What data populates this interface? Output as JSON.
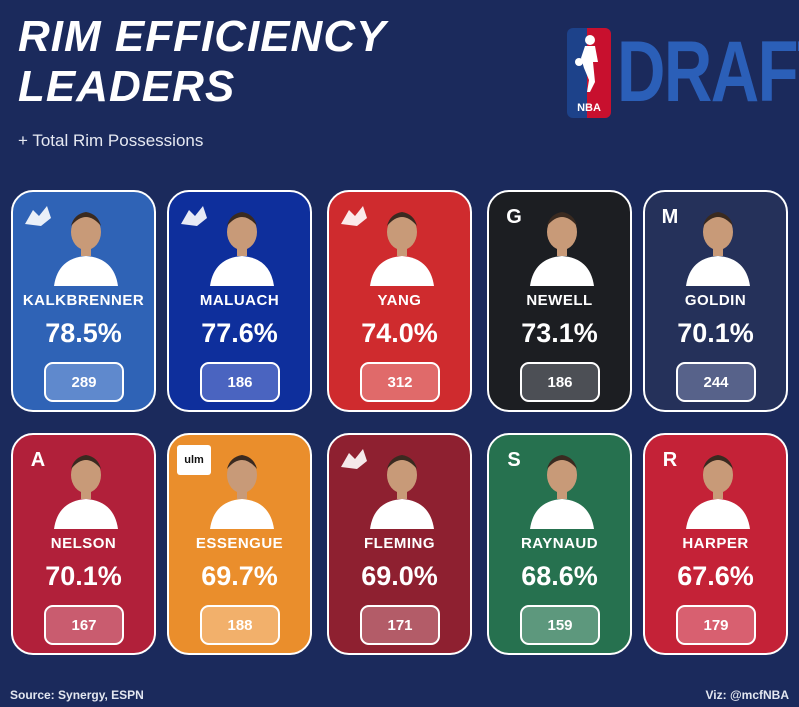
{
  "header": {
    "title_line1": "RIM EFFICIENCY",
    "title_line2": "LEADERS",
    "subtitle": "+ Total Rim Possessions",
    "logo_badge_text": "NBA",
    "logo_word": "DRAFT"
  },
  "players": [
    {
      "name": "KALKBRENNER",
      "pct": "78.5%",
      "possessions": "289",
      "card_color": "#2f63b6",
      "box_color": "#5f89cd",
      "team_logo": "bluejay-icon",
      "logo_text": ""
    },
    {
      "name": "MALUACH",
      "pct": "77.6%",
      "possessions": "186",
      "card_color": "#0e2f9c",
      "box_color": "#4a64c0",
      "team_logo": "blue-devil-icon",
      "logo_text": ""
    },
    {
      "name": "YANG",
      "pct": "74.0%",
      "possessions": "312",
      "card_color": "#cf2b2e",
      "box_color": "#e06a6a",
      "team_logo": "tianjin-crest-icon",
      "logo_text": ""
    },
    {
      "name": "NEWELL",
      "pct": "73.1%",
      "possessions": "186",
      "card_color": "#1c1e22",
      "box_color": "#4c4f55",
      "team_logo": "georgia-g-icon",
      "logo_text": "G"
    },
    {
      "name": "GOLDIN",
      "pct": "70.1%",
      "possessions": "244",
      "card_color": "#25315a",
      "box_color": "#57628a",
      "team_logo": "michigan-m-icon",
      "logo_text": "M"
    },
    {
      "name": "NELSON",
      "pct": "70.1%",
      "possessions": "167",
      "card_color": "#b1203a",
      "box_color": "#c95c6f",
      "team_logo": "alabama-a-icon",
      "logo_text": "A"
    },
    {
      "name": "ESSENGUE",
      "pct": "69.7%",
      "possessions": "188",
      "card_color": "#ea8e2c",
      "box_color": "#f2b06b",
      "team_logo": "ulm-icon",
      "logo_text": "ulm"
    },
    {
      "name": "FLEMING",
      "pct": "69.0%",
      "possessions": "171",
      "card_color": "#8e2030",
      "box_color": "#b35c68",
      "team_logo": "hawk-icon",
      "logo_text": ""
    },
    {
      "name": "RAYNAUD",
      "pct": "68.6%",
      "possessions": "159",
      "card_color": "#26714f",
      "box_color": "#5d987d",
      "team_logo": "stanford-s-icon",
      "logo_text": "S"
    },
    {
      "name": "HARPER",
      "pct": "67.6%",
      "possessions": "179",
      "card_color": "#c42237",
      "box_color": "#d86070",
      "team_logo": "rutgers-r-icon",
      "logo_text": "R"
    }
  ],
  "footer": {
    "source": "Source: Synergy, ESPN",
    "credit": "Viz: @mcfNBA"
  }
}
